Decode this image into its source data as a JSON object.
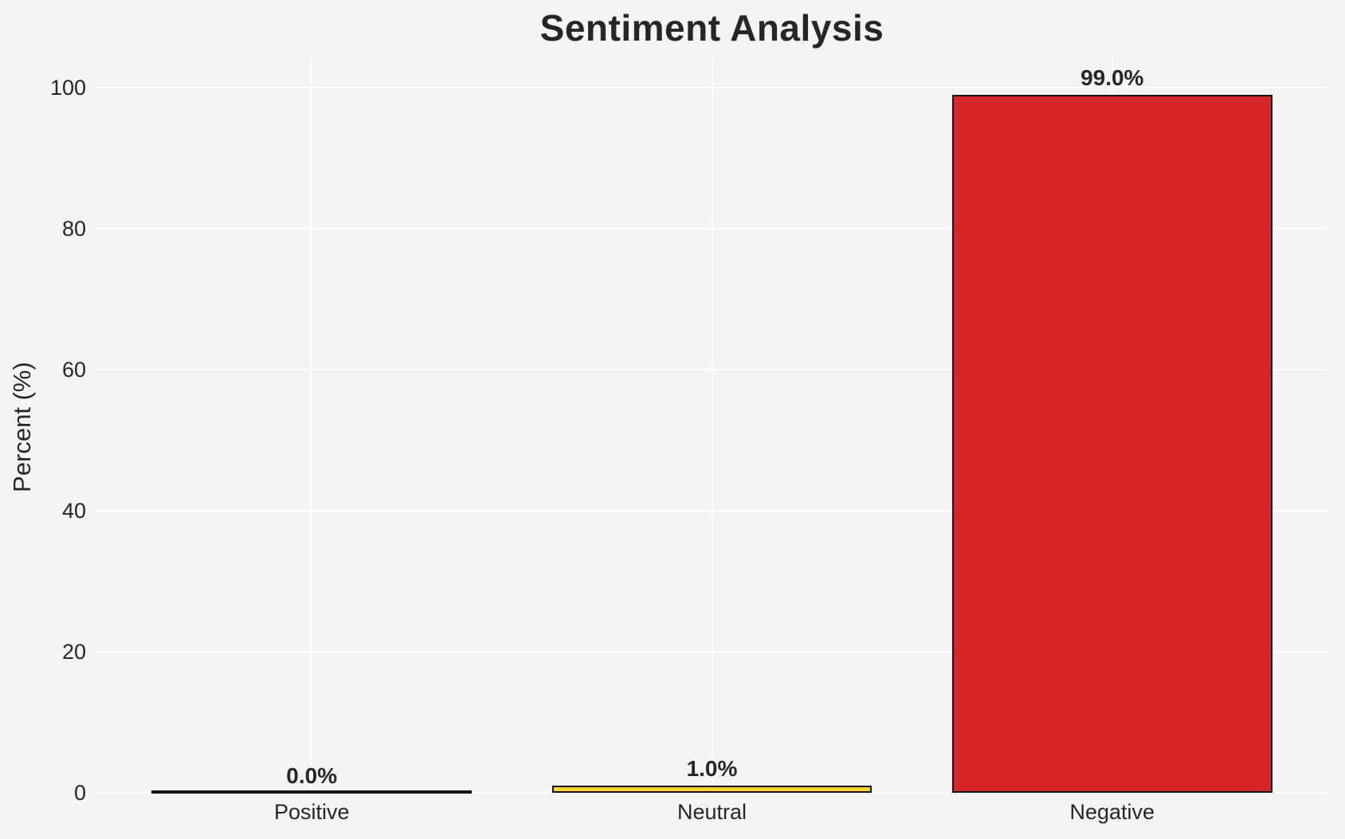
{
  "chart_data": {
    "type": "bar",
    "title": "Sentiment Analysis",
    "xlabel": "",
    "ylabel": "Percent (%)",
    "categories": [
      "Positive",
      "Neutral",
      "Negative"
    ],
    "values": [
      0.0,
      1.0,
      99.0
    ],
    "value_labels": [
      "0.0%",
      "1.0%",
      "99.0%"
    ],
    "bar_colors": [
      "transparent",
      "#f5d132",
      "#d62728"
    ],
    "bar_edge_color": "#151515",
    "yticks": [
      0,
      20,
      40,
      60,
      80,
      100
    ],
    "ylim": [
      0,
      104
    ],
    "grid": "on",
    "legend": "none",
    "background_color": "#f5f4f2",
    "gridline_color": "#ffffff",
    "text_color": "#262626"
  }
}
